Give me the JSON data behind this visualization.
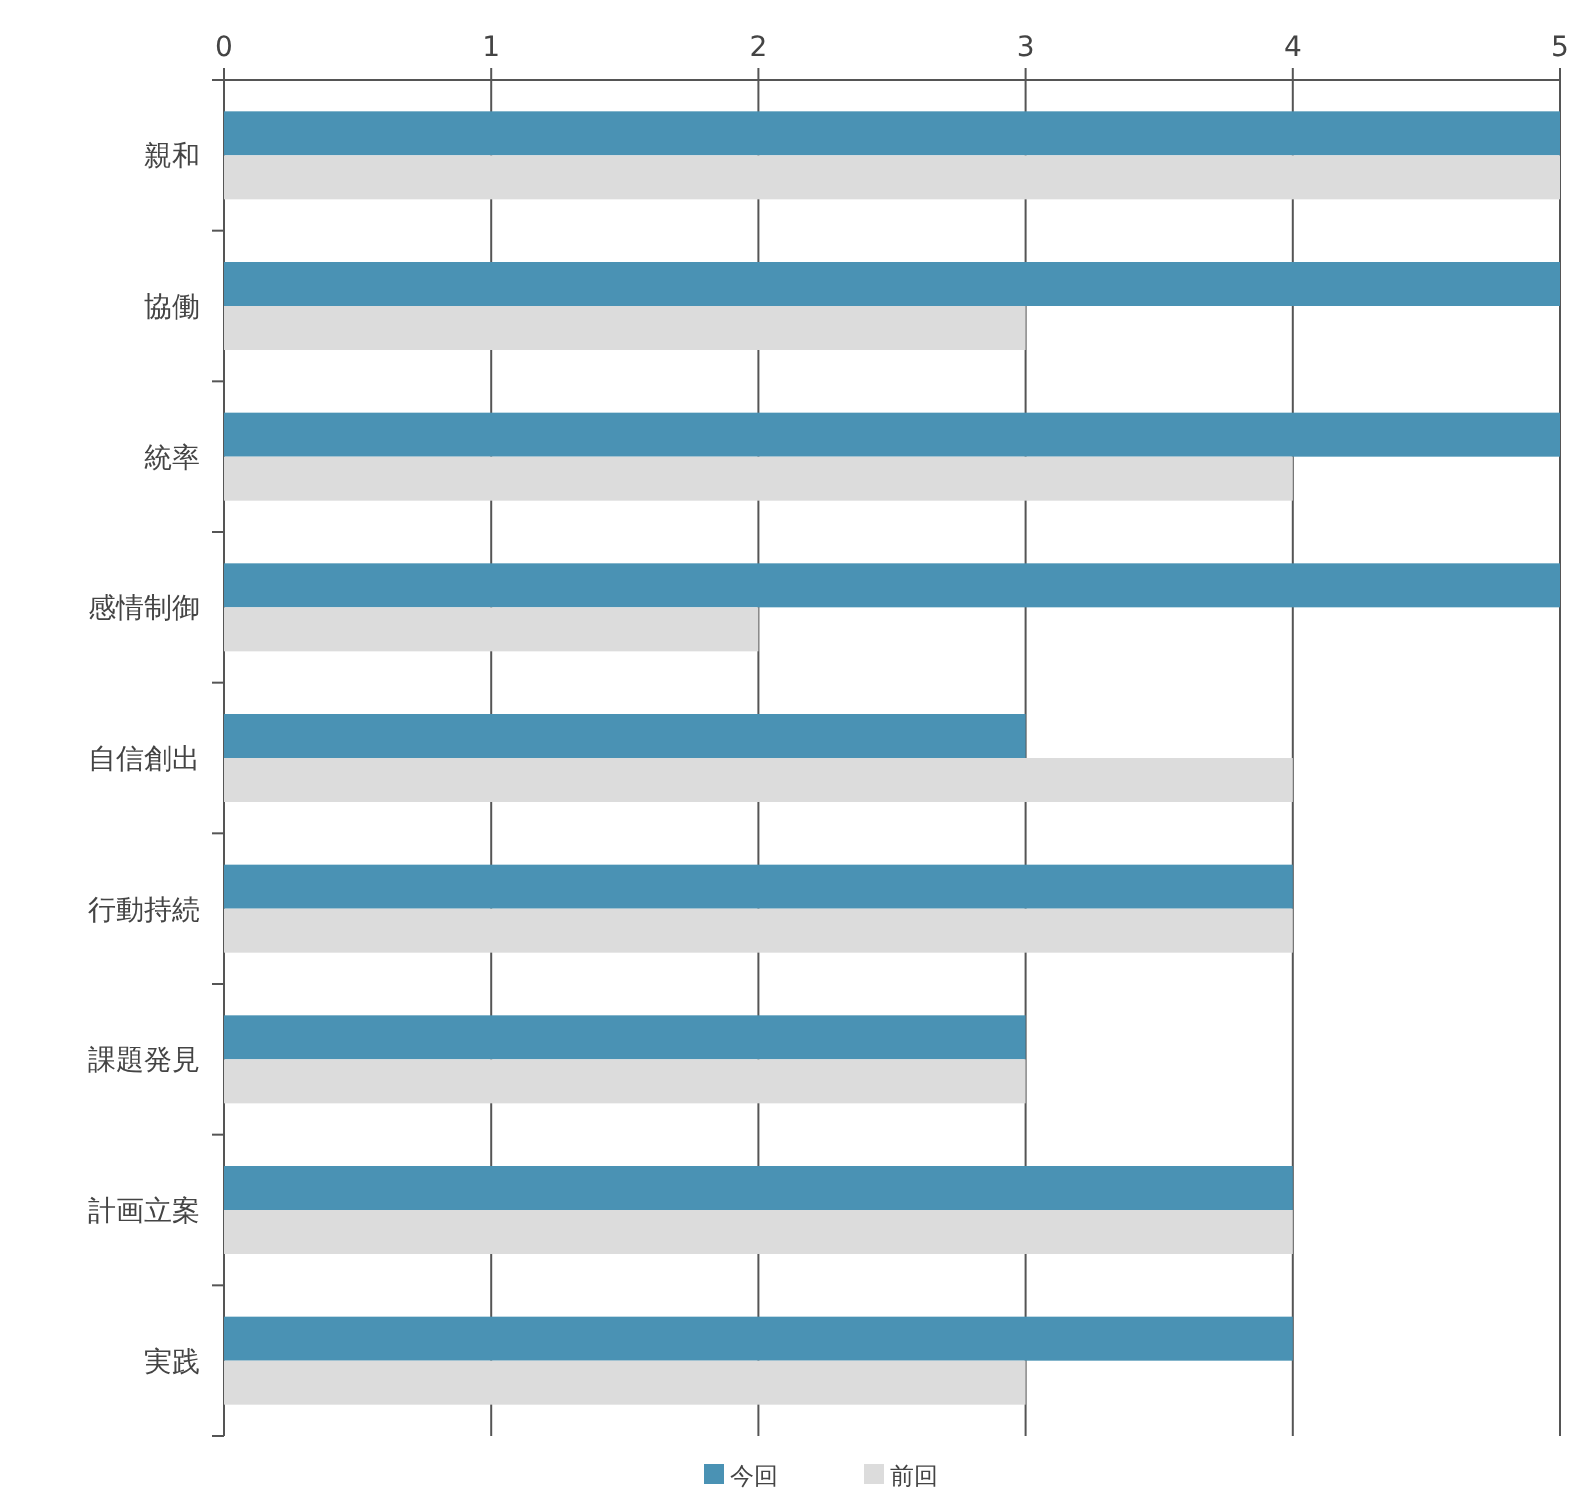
{
  "chart_data": {
    "type": "bar",
    "orientation": "horizontal",
    "categories": [
      "親和",
      "協働",
      "統率",
      "感情制御",
      "自信創出",
      "行動持続",
      "課題発見",
      "計画立案",
      "実践"
    ],
    "series": [
      {
        "name": "今回",
        "color": "#4a92b4",
        "values": [
          5,
          5,
          5,
          5,
          3,
          4,
          3,
          4,
          4
        ]
      },
      {
        "name": "前回",
        "color": "#dcdcdc",
        "values": [
          5,
          3,
          4,
          2,
          4,
          4,
          3,
          4,
          3
        ]
      }
    ],
    "xlim": [
      0,
      5
    ],
    "xticks": [
      0,
      1,
      2,
      3,
      4,
      5
    ],
    "grid": "x",
    "legend": "bottom"
  }
}
